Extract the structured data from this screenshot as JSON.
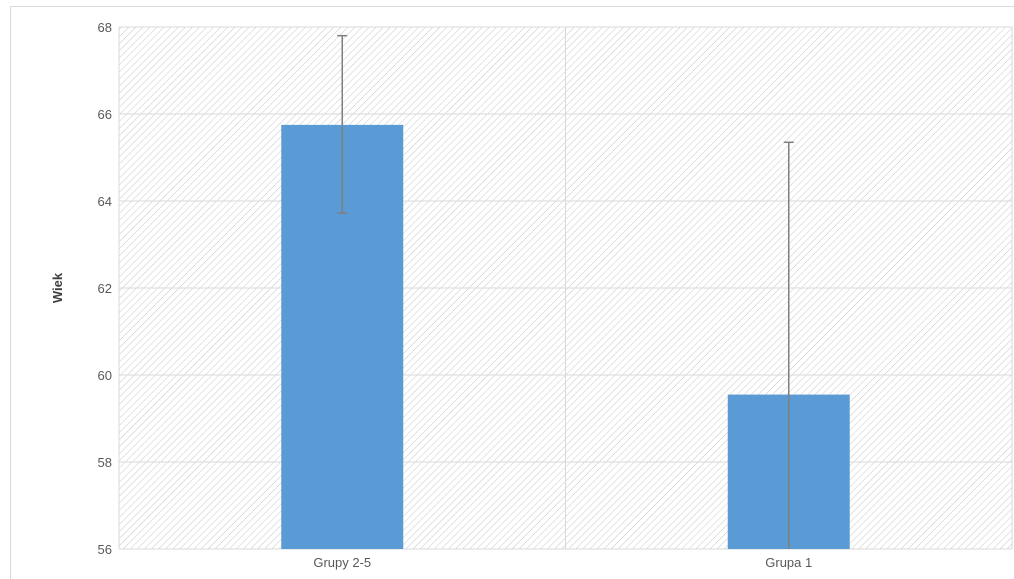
{
  "chart_data": {
    "type": "bar",
    "title": "",
    "xlabel": "",
    "ylabel": "Wiek",
    "categories": [
      "Grupy 2-5",
      "Grupa 1"
    ],
    "values": [
      65.75,
      59.55
    ],
    "error_bars": [
      {
        "upper": 67.8,
        "lower": 63.72
      },
      {
        "upper": 65.35,
        "lower": 56.0
      }
    ],
    "ylim": [
      56,
      68
    ],
    "yticks": [
      56,
      58,
      60,
      62,
      64,
      66,
      68
    ],
    "ytick_labels": [
      "56",
      "58",
      "60",
      "62",
      "64",
      "66",
      "68"
    ],
    "grid": true,
    "plot_background": "diagonal-hatch",
    "colors": {
      "bar": "#5b9bd5",
      "error_bar": "#7f7f7f",
      "grid": "#d9d9d9",
      "hatch": "#c8c8c8"
    }
  }
}
